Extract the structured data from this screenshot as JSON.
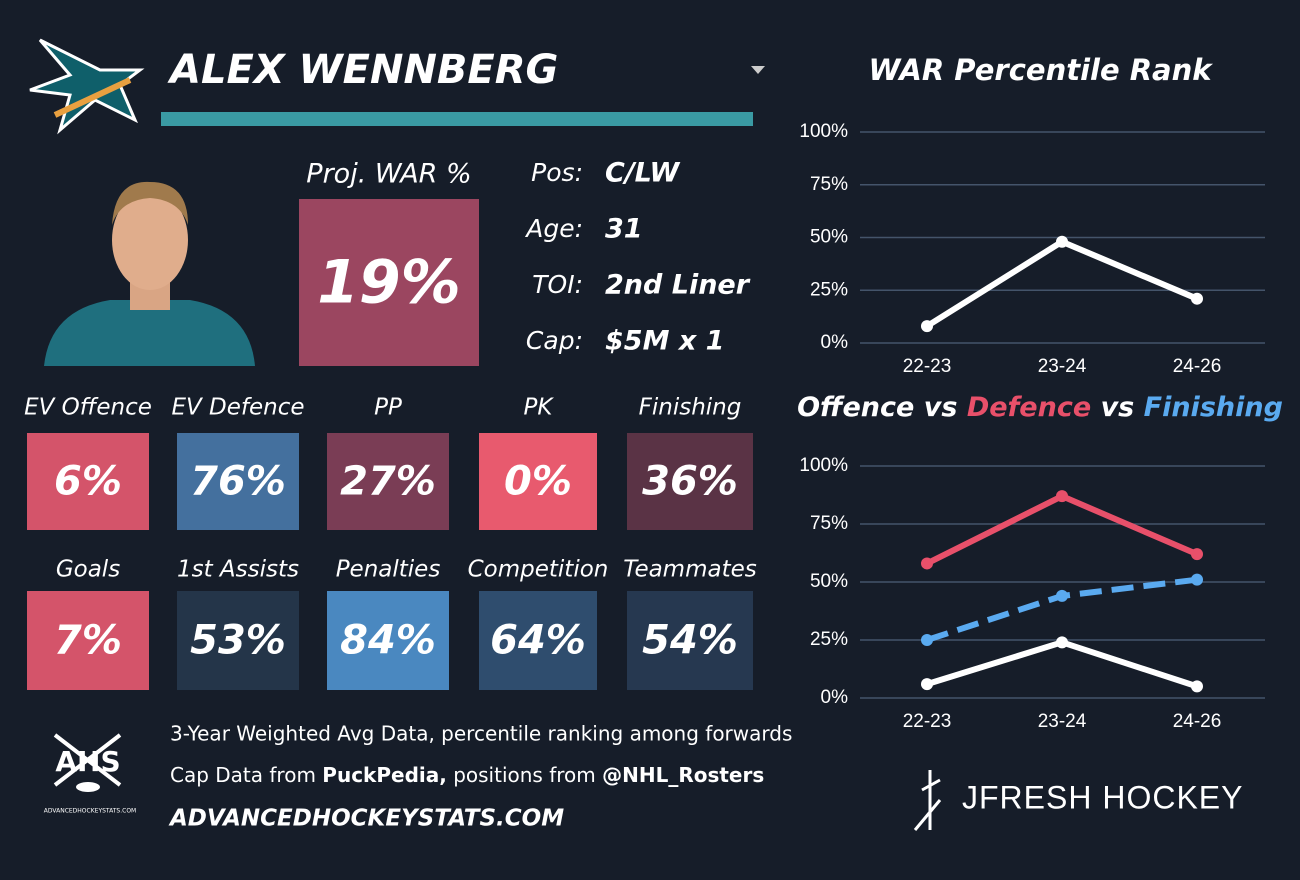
{
  "header": {
    "player": "ALEX WENNBERG"
  },
  "projection": {
    "label": "Proj. WAR %",
    "value": "19%",
    "color": "#9b4660"
  },
  "info": [
    {
      "label": "Pos:",
      "value": "C/LW"
    },
    {
      "label": "Age:",
      "value": "31"
    },
    {
      "label": "TOI:",
      "value": "2nd Liner"
    },
    {
      "label": "Cap:",
      "value": "$5M x 1"
    }
  ],
  "tiles": [
    [
      {
        "label": "EV Offence",
        "value": "6%",
        "color": "#d4546a"
      },
      {
        "label": "EV Defence",
        "value": "76%",
        "color": "#44709e"
      },
      {
        "label": "PP",
        "value": "27%",
        "color": "#7a3d55"
      },
      {
        "label": "PK",
        "value": "0%",
        "color": "#e85a6e"
      },
      {
        "label": "Finishing",
        "value": "36%",
        "color": "#5a3345"
      }
    ],
    [
      {
        "label": "Goals",
        "value": "7%",
        "color": "#d4546a"
      },
      {
        "label": "1st Assists",
        "value": "53%",
        "color": "#243549"
      },
      {
        "label": "Penalties",
        "value": "84%",
        "color": "#4a88c0"
      },
      {
        "label": "Competition",
        "value": "64%",
        "color": "#2f4d6e"
      },
      {
        "label": "Teammates",
        "value": "54%",
        "color": "#263850"
      }
    ]
  ],
  "footer": {
    "note": "3-Year Weighted Avg Data, percentile ranking among forwards",
    "credits": [
      "Cap Data from ",
      "PuckPedia,",
      " positions from ",
      "@NHL_Rosters"
    ],
    "url": "ADVANCEDHOCKEYSTATS.COM",
    "logo": "AHS",
    "logo_caption": "ADVANCEDHOCKEYSTATS.COM",
    "brand": "JFRESH HOCKEY"
  },
  "chart_data": [
    {
      "type": "line",
      "title": "WAR Percentile Rank",
      "categories": [
        "22-23",
        "23-24",
        "24-26"
      ],
      "series": [
        {
          "color": "#ffffff",
          "values": [
            8,
            48,
            21
          ]
        }
      ],
      "ylim": [
        0,
        100
      ],
      "yticks": [
        {
          "value": 0,
          "label": "0%"
        },
        {
          "value": 25,
          "label": "25%"
        },
        {
          "value": 50,
          "label": "50%"
        },
        {
          "value": 75,
          "label": "75%"
        },
        {
          "value": 100,
          "label": "100%"
        }
      ],
      "grid": true
    },
    {
      "type": "line",
      "title_separator": "vs",
      "categories": [
        "22-23",
        "23-24",
        "24-26"
      ],
      "series": [
        {
          "name": "Offence",
          "color": "#ffffff",
          "values": [
            6,
            24,
            5
          ]
        },
        {
          "name": "Defence",
          "color": "#e8506a",
          "values": [
            58,
            87,
            62
          ]
        },
        {
          "name": "Finishing",
          "color": "#5aaaf0",
          "values": [
            25,
            44,
            51
          ],
          "dashed": true
        }
      ],
      "ylim": [
        0,
        100
      ],
      "yticks": [
        {
          "value": 0,
          "label": "0%"
        },
        {
          "value": 25,
          "label": "25%"
        },
        {
          "value": 50,
          "label": "50%"
        },
        {
          "value": 75,
          "label": "75%"
        },
        {
          "value": 100,
          "label": "100%"
        }
      ],
      "grid": true
    }
  ]
}
